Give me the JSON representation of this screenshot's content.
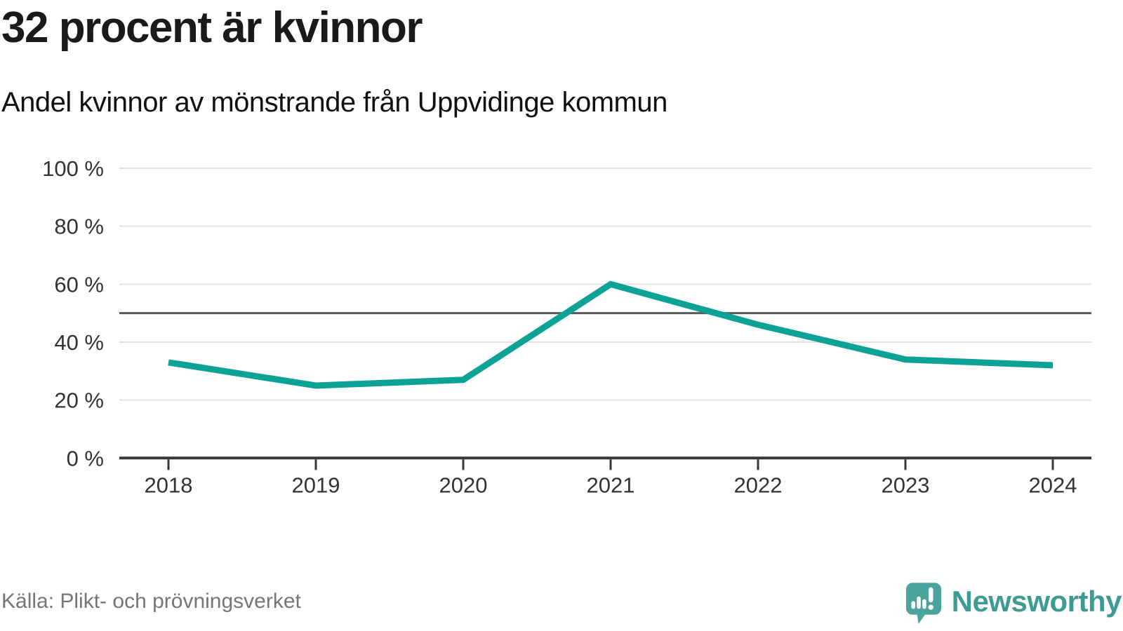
{
  "header": {
    "title": "32 procent är kvinnor",
    "subtitle": "Andel kvinnor av mönstrande från Uppvidinge kommun"
  },
  "chart_data": {
    "type": "line",
    "title": "32 procent är kvinnor",
    "subtitle": "Andel kvinnor av mönstrande från Uppvidinge kommun",
    "categories": [
      "2018",
      "2019",
      "2020",
      "2021",
      "2022",
      "2023",
      "2024"
    ],
    "series": [
      {
        "name": "Andel kvinnor av mönstrande",
        "values": [
          33,
          25,
          27,
          60,
          46,
          34,
          32
        ]
      }
    ],
    "unit": "%",
    "xlabel": "",
    "ylabel": "",
    "ylim": [
      0,
      100
    ],
    "yticks": [
      0,
      20,
      40,
      60,
      80,
      100
    ],
    "ytick_labels": [
      "0 %",
      "20 %",
      "40 %",
      "60 %",
      "80 %",
      "100 %"
    ],
    "reference_line": 50,
    "grid": true,
    "legend": "none",
    "line_color": "#0ca295",
    "grid_color": "#e2e2e2",
    "axis_color": "#383838",
    "reference_color": "#58595b",
    "tick_label_color": "#333333"
  },
  "footer": {
    "source": "Källa: Plikt- och prövningsverket",
    "brand": "Newsworthy"
  },
  "icons": {
    "logo": "newsworthy-logo-icon"
  },
  "colors": {
    "logo_bubble": "#4aa39c",
    "logo_glyphs": "#ffffff",
    "brand_text": "#3e9b94",
    "title_text": "#1a1a1a",
    "source_text": "#767676"
  }
}
